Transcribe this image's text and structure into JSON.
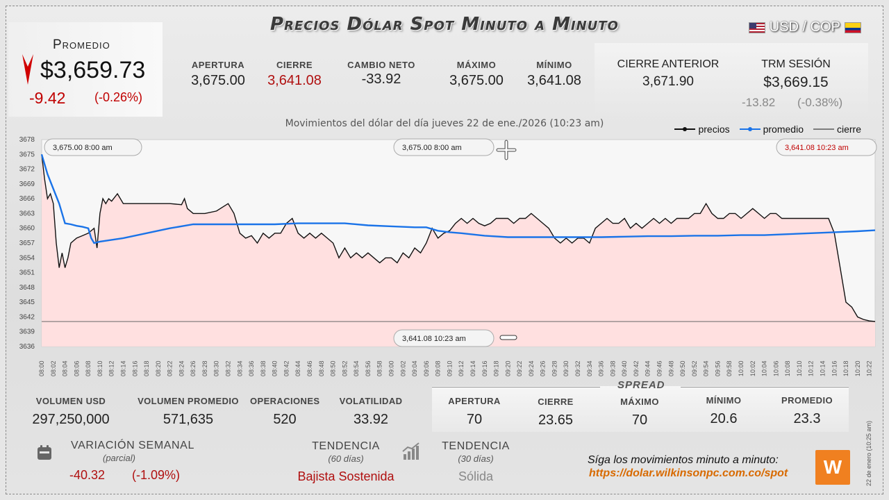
{
  "title": "Precios Dólar Spot Minuto a Minuto",
  "pair": "USD / COP",
  "icons": {
    "flag_us": "us-flag-icon",
    "flag_co": "colombia-flag-icon",
    "arrow": "down-arrow-icon",
    "calendar": "calendar-icon",
    "trend": "bar-trend-icon",
    "crosshair": "crosshair-icon"
  },
  "colors": {
    "precios": "#111111",
    "promedio": "#1a73e8",
    "area": "#ffe0e0",
    "down": "#c00000",
    "accent": "#f08020"
  },
  "promedio": {
    "label": "Promedio",
    "value": "$3,659.73",
    "change": "-9.42",
    "pct": "(-0.26%)"
  },
  "stats": {
    "apertura": {
      "label": "APERTURA",
      "value": "3,675.00"
    },
    "cierre": {
      "label": "CIERRE",
      "value": "3,641.08"
    },
    "cambio_neto": {
      "label": "CAMBIO NETO",
      "value": "-33.92"
    },
    "maximo": {
      "label": "MÁXIMO",
      "value": "3,675.00"
    },
    "minimo": {
      "label": "MÍNIMO",
      "value": "3,641.08"
    }
  },
  "prev": {
    "label": "CIERRE ANTERIOR",
    "value": "3,671.90"
  },
  "trm": {
    "label": "TRM SESIÓN",
    "value": "$3,669.15",
    "change": "-13.82",
    "pct": "(-0.38%)"
  },
  "subtitle": "Movimientos del dólar del día jueves 22 de ene./2026 (10:23 am)",
  "legend": {
    "precios": "precios",
    "promedio": "promedio",
    "cierre": "cierre"
  },
  "tooltips": {
    "open_left": {
      "price": "3,675.00",
      "time": "8:00 am"
    },
    "open_center": {
      "price": "3,675.00",
      "time": "8:00 am"
    },
    "close_right": {
      "price": "3,641.08",
      "time": "10:23 am"
    },
    "close_bottom": {
      "price": "3,641.08",
      "time": "10:23 am"
    }
  },
  "chart_data": {
    "type": "line",
    "ylim": [
      3636,
      3678
    ],
    "y_ticks": [
      3636,
      3639,
      3642,
      3645,
      3648,
      3651,
      3654,
      3657,
      3660,
      3663,
      3666,
      3669,
      3672,
      3675,
      3678
    ],
    "x_range_minutes": [
      0,
      143
    ],
    "x_ticks": [
      "08:00",
      "08:02",
      "08:04",
      "08:06",
      "08:08",
      "08:10",
      "08:12",
      "08:14",
      "08:16",
      "08:18",
      "08:20",
      "08:22",
      "08:24",
      "08:26",
      "08:28",
      "08:30",
      "08:32",
      "08:34",
      "08:36",
      "08:38",
      "08:40",
      "08:42",
      "08:44",
      "08:46",
      "08:48",
      "08:50",
      "08:52",
      "08:54",
      "08:56",
      "08:58",
      "09:00",
      "09:02",
      "09:04",
      "09:06",
      "09:08",
      "09:10",
      "09:12",
      "09:14",
      "09:16",
      "09:18",
      "09:20",
      "09:22",
      "09:24",
      "09:26",
      "09:28",
      "09:30",
      "09:32",
      "09:34",
      "09:36",
      "09:38",
      "09:40",
      "09:42",
      "09:44",
      "09:46",
      "09:48",
      "09:50",
      "09:52",
      "09:54",
      "09:56",
      "09:58",
      "10:00",
      "10:02",
      "10:04",
      "10:06",
      "10:08",
      "10:10",
      "10:12",
      "10:14",
      "10:16",
      "10:18",
      "10:20",
      "10:22"
    ],
    "cierre": 3641.08,
    "series": [
      {
        "name": "precios",
        "x": [
          0,
          0.5,
          1,
          1.5,
          2,
          2.5,
          3,
          3.5,
          4,
          4.5,
          5,
          6,
          7,
          8,
          9,
          9.5,
          10,
          10.5,
          11,
          11.5,
          12,
          13,
          14,
          16,
          18,
          20,
          22,
          24,
          24.5,
          25,
          26,
          28,
          30,
          32,
          33,
          34,
          35,
          36,
          37,
          38,
          39,
          40,
          41,
          42,
          43,
          44,
          45,
          46,
          47,
          48,
          49,
          50,
          51,
          52,
          53,
          54,
          55,
          56,
          57,
          58,
          59,
          60,
          61,
          62,
          63,
          64,
          65,
          66,
          67,
          68,
          69,
          70,
          71,
          72,
          73,
          74,
          75,
          76,
          77,
          78,
          79,
          80,
          81,
          82,
          83,
          84,
          85,
          86,
          87,
          88,
          89,
          90,
          91,
          92,
          93,
          94,
          95,
          96,
          97,
          98,
          99,
          100,
          101,
          102,
          103,
          104,
          105,
          106,
          107,
          108,
          109,
          110,
          111,
          112,
          113,
          114,
          115,
          116,
          117,
          118,
          119,
          120,
          121,
          122,
          123,
          124,
          125,
          126,
          127,
          128,
          129,
          130,
          131,
          132,
          133,
          134,
          135,
          136,
          137,
          138,
          139,
          140,
          141,
          142,
          143
        ],
        "y": [
          3675,
          3670,
          3666,
          3667,
          3665,
          3657,
          3652,
          3655,
          3652,
          3654,
          3657,
          3658,
          3658.5,
          3659,
          3660,
          3656,
          3663,
          3666,
          3665,
          3666,
          3665.5,
          3667,
          3665,
          3665,
          3665,
          3665,
          3665,
          3664.8,
          3666,
          3664,
          3663,
          3663,
          3663.5,
          3665,
          3663,
          3659,
          3658,
          3658.5,
          3657,
          3659,
          3658,
          3659,
          3659,
          3661,
          3662,
          3659,
          3658,
          3659,
          3658,
          3659,
          3658,
          3657,
          3654,
          3656,
          3654,
          3655,
          3654,
          3655,
          3654,
          3653,
          3654,
          3654,
          3653,
          3655,
          3654,
          3656,
          3655,
          3657,
          3660,
          3658,
          3659,
          3659.5,
          3661,
          3662,
          3661,
          3662,
          3661,
          3660.5,
          3661,
          3662,
          3662,
          3662,
          3661,
          3662,
          3662,
          3663,
          3662,
          3661,
          3660,
          3658,
          3657,
          3658,
          3657,
          3658,
          3658,
          3657,
          3660,
          3661,
          3662,
          3661,
          3661,
          3662,
          3660,
          3661,
          3660,
          3661,
          3662,
          3661,
          3662,
          3661,
          3662,
          3662,
          3662,
          3663,
          3663,
          3665,
          3663,
          3662,
          3662,
          3663,
          3663,
          3662,
          3663,
          3664,
          3663,
          3662,
          3663,
          3663,
          3662,
          3662,
          3662,
          3662,
          3662,
          3662,
          3662,
          3662,
          3662,
          3659,
          3652,
          3645,
          3644,
          3642,
          3641.5,
          3641.2,
          3641.08
        ],
        "color": "#111111"
      },
      {
        "name": "promedio",
        "x": [
          0,
          1,
          2,
          3,
          4,
          5,
          6,
          7,
          8,
          8.5,
          9,
          10,
          14,
          18,
          22,
          26,
          30,
          34,
          40,
          44,
          48,
          52,
          56,
          60,
          64,
          66,
          68,
          70,
          72,
          76,
          80,
          84,
          88,
          92,
          96,
          100,
          104,
          108,
          112,
          116,
          120,
          124,
          128,
          132,
          136,
          140,
          143
        ],
        "y": [
          3675,
          3671,
          3668,
          3665,
          3661,
          3660.8,
          3660.5,
          3660.3,
          3660,
          3658,
          3657,
          3657.3,
          3658,
          3659,
          3660,
          3660.8,
          3660.8,
          3660.8,
          3660.8,
          3661,
          3661,
          3661,
          3660.6,
          3660.4,
          3660.2,
          3660.2,
          3659.5,
          3659.2,
          3659,
          3658.5,
          3658.2,
          3658.2,
          3658.2,
          3658.2,
          3658.2,
          3658.3,
          3658.4,
          3658.4,
          3658.5,
          3658.5,
          3658.6,
          3658.6,
          3658.8,
          3659,
          3659.2,
          3659.4,
          3659.6
        ],
        "color": "#1a73e8"
      }
    ]
  },
  "bottom": {
    "volumen_usd": {
      "label": "VOLUMEN USD",
      "value": "297,250,000"
    },
    "volumen_promedio": {
      "label": "VOLUMEN PROMEDIO",
      "value": "571,635"
    },
    "operaciones": {
      "label": "OPERACIONES",
      "value": "520"
    },
    "volatilidad": {
      "label": "VOLATILIDAD",
      "value": "33.92"
    }
  },
  "spread": {
    "title": "SPREAD",
    "apertura": {
      "label": "APERTURA",
      "value": "70"
    },
    "cierre": {
      "label": "CIERRE",
      "value": "23.65"
    },
    "maximo": {
      "label": "MÁXIMO",
      "value": "70"
    },
    "minimo": {
      "label": "MÍNIMO",
      "value": "20.6"
    },
    "promedio": {
      "label": "PROMEDIO",
      "value": "23.3"
    }
  },
  "weekly": {
    "label": "VARIACIÓN SEMANAL",
    "sub": "(parcial)",
    "value": "-40.32",
    "pct": "(-1.09%)"
  },
  "trend60": {
    "label": "TENDENCIA",
    "sub": "(60 días)",
    "value": "Bajista Sostenida"
  },
  "trend30": {
    "label": "TENDENCIA",
    "sub": "(30 días)",
    "value": "Sólida"
  },
  "follow": {
    "text": "Síga los movimientos minuto a minuto:",
    "url": "https://dolar.wilkinsonpc.com.co/spot"
  },
  "logo": "W",
  "side_date": "22 de enero (10:25 am)"
}
